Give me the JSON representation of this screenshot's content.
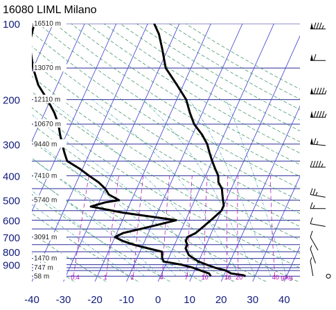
{
  "chart_data": {
    "type": "line",
    "title": "16080 LIML Milano",
    "pressure_ticks": [
      "100",
      "200",
      "300",
      "400",
      "500",
      "600",
      "700",
      "800",
      "900"
    ],
    "temperature_ticks": [
      "-40",
      "-30",
      "-20",
      "-10",
      "0",
      "10",
      "20",
      "30",
      "40"
    ],
    "height_labels": [
      {
        "p": 100,
        "text": "16510 m"
      },
      {
        "p": 150,
        "text": "13070 m"
      },
      {
        "p": 200,
        "text": "12110 m"
      },
      {
        "p": 250,
        "text": "10670 m"
      },
      {
        "p": 300,
        "text": "9440 m"
      },
      {
        "p": 400,
        "text": "7410 m"
      },
      {
        "p": 500,
        "text": "5740 m"
      },
      {
        "p": 700,
        "text": "3091 m"
      },
      {
        "p": 850,
        "text": "1470 m"
      },
      {
        "p": 925,
        "text": "747 m"
      },
      {
        "p": 1000,
        "text": "58 m"
      }
    ],
    "mixing_ratio_labels": [
      "0.4",
      "1",
      "2",
      "4",
      "7",
      "10",
      "16",
      "20",
      "40 g/kg"
    ],
    "series": [
      {
        "role": "temperature",
        "points": [
          [
            1000,
            27
          ],
          [
            990,
            26
          ],
          [
            975,
            22
          ],
          [
            950,
            20
          ],
          [
            925,
            16
          ],
          [
            900,
            13
          ],
          [
            875,
            10
          ],
          [
            850,
            8
          ],
          [
            825,
            6
          ],
          [
            800,
            5
          ],
          [
            775,
            4
          ],
          [
            750,
            4
          ],
          [
            725,
            3
          ],
          [
            700,
            3
          ],
          [
            675,
            5
          ],
          [
            650,
            6
          ],
          [
            625,
            7
          ],
          [
            600,
            8
          ],
          [
            575,
            9
          ],
          [
            550,
            10
          ],
          [
            525,
            10
          ],
          [
            500,
            9
          ],
          [
            475,
            8
          ],
          [
            450,
            7
          ],
          [
            425,
            5
          ],
          [
            400,
            4
          ],
          [
            375,
            2
          ],
          [
            350,
            0
          ],
          [
            325,
            -2
          ],
          [
            300,
            -4
          ],
          [
            275,
            -7
          ],
          [
            250,
            -11
          ],
          [
            225,
            -14
          ],
          [
            200,
            -17
          ],
          [
            175,
            -22
          ],
          [
            150,
            -28
          ],
          [
            125,
            -32
          ],
          [
            110,
            -35
          ],
          [
            100,
            -38
          ]
        ]
      },
      {
        "role": "dewpoint",
        "points": [
          [
            1000,
            16
          ],
          [
            975,
            15
          ],
          [
            950,
            12
          ],
          [
            925,
            9
          ],
          [
            900,
            5
          ],
          [
            875,
            -1
          ],
          [
            850,
            -2
          ],
          [
            800,
            -3
          ],
          [
            775,
            -8
          ],
          [
            750,
            -13
          ],
          [
            725,
            -17
          ],
          [
            700,
            -20
          ],
          [
            675,
            -18
          ],
          [
            650,
            -13
          ],
          [
            625,
            -8
          ],
          [
            600,
            -3
          ],
          [
            560,
            -21
          ],
          [
            530,
            -32
          ],
          [
            510,
            -28
          ],
          [
            500,
            -24
          ],
          [
            475,
            -28
          ],
          [
            450,
            -30
          ],
          [
            425,
            -33
          ],
          [
            400,
            -37
          ],
          [
            375,
            -41
          ],
          [
            350,
            -46
          ],
          [
            325,
            -48
          ],
          [
            300,
            -50
          ],
          [
            275,
            -52
          ],
          [
            250,
            -54
          ],
          [
            225,
            -57
          ],
          [
            200,
            -61
          ],
          [
            175,
            -66
          ],
          [
            150,
            -70
          ],
          [
            130,
            -73
          ],
          [
            115,
            -75
          ],
          [
            100,
            -76
          ]
        ]
      }
    ],
    "wind_barbs": [
      {
        "p": 105,
        "dir": 270,
        "kt": 85
      },
      {
        "p": 140,
        "dir": 270,
        "kt": 60
      },
      {
        "p": 190,
        "dir": 270,
        "kt": 95
      },
      {
        "p": 235,
        "dir": 270,
        "kt": 95
      },
      {
        "p": 300,
        "dir": 275,
        "kt": 65
      },
      {
        "p": 370,
        "dir": 270,
        "kt": 45
      },
      {
        "p": 475,
        "dir": 280,
        "kt": 25
      },
      {
        "p": 540,
        "dir": 270,
        "kt": 15
      },
      {
        "p": 620,
        "dir": 280,
        "kt": 10
      },
      {
        "p": 700,
        "dir": 330,
        "kt": 10
      },
      {
        "p": 780,
        "dir": 340,
        "kt": 5
      },
      {
        "p": 870,
        "dir": 350,
        "kt": 5
      },
      {
        "p": 1000,
        "dir": 0,
        "kt": 0
      }
    ],
    "xlim": [
      -40,
      45
    ],
    "ylim": [
      1050,
      100
    ],
    "y_scale": "log",
    "skew": "skew-T log-p",
    "grid": true,
    "colors": {
      "isobars": "#2a2a9a",
      "isotherms": "#3b3bd0",
      "dry_adiabats": "#2e8b57",
      "moist_adiabats": "#1f8f9a",
      "mixing_ratio": "#b000b0",
      "profiles": "#000000",
      "axis_text": "#111a7a"
    }
  }
}
